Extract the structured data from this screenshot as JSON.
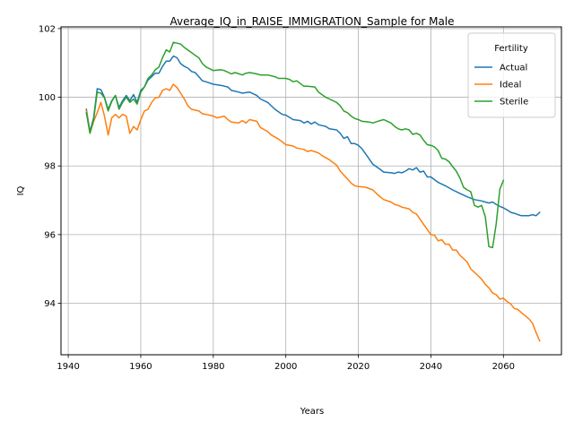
{
  "chart_data": {
    "type": "line",
    "title": "Average_IQ_in_RAISE_IMMIGRATION_Sample for Male",
    "xlabel": "Years",
    "ylabel": "IQ",
    "xlim": [
      1938,
      2076
    ],
    "ylim": [
      92.5,
      102.05
    ],
    "xticks": [
      1940,
      1960,
      1980,
      2000,
      2020,
      2040,
      2060
    ],
    "yticks": [
      94,
      96,
      98,
      100,
      102
    ],
    "grid": true,
    "legend": {
      "title": "Fertility",
      "placement": "top-right"
    },
    "series": [
      {
        "name": "Actual",
        "color": "#1f77b4",
        "points": [
          [
            1945,
            99.65
          ],
          [
            1946,
            99.0
          ],
          [
            1947,
            99.4
          ],
          [
            1948,
            100.25
          ],
          [
            1949,
            100.22
          ],
          [
            1950,
            100.0
          ],
          [
            1951,
            99.65
          ],
          [
            1952,
            99.9
          ],
          [
            1953,
            100.05
          ],
          [
            1954,
            99.7
          ],
          [
            1955,
            99.9
          ],
          [
            1956,
            100.05
          ],
          [
            1957,
            99.9
          ],
          [
            1958,
            100.08
          ],
          [
            1959,
            99.85
          ],
          [
            1960,
            100.2
          ],
          [
            1961,
            100.3
          ],
          [
            1962,
            100.5
          ],
          [
            1963,
            100.6
          ],
          [
            1964,
            100.7
          ],
          [
            1965,
            100.7
          ],
          [
            1966,
            100.9
          ],
          [
            1967,
            101.05
          ],
          [
            1968,
            101.05
          ],
          [
            1969,
            101.2
          ],
          [
            1970,
            101.15
          ],
          [
            1971,
            100.98
          ],
          [
            1972,
            100.9
          ],
          [
            1973,
            100.85
          ],
          [
            1974,
            100.75
          ],
          [
            1975,
            100.72
          ],
          [
            1976,
            100.6
          ],
          [
            1977,
            100.48
          ],
          [
            1978,
            100.45
          ],
          [
            1980,
            100.38
          ],
          [
            1982,
            100.35
          ],
          [
            1984,
            100.3
          ],
          [
            1985,
            100.2
          ],
          [
            1987,
            100.15
          ],
          [
            1988,
            100.12
          ],
          [
            1990,
            100.15
          ],
          [
            1992,
            100.05
          ],
          [
            1993,
            99.95
          ],
          [
            1995,
            99.85
          ],
          [
            1997,
            99.65
          ],
          [
            1999,
            99.5
          ],
          [
            2000,
            99.48
          ],
          [
            2002,
            99.35
          ],
          [
            2004,
            99.32
          ],
          [
            2005,
            99.25
          ],
          [
            2006,
            99.3
          ],
          [
            2007,
            99.22
          ],
          [
            2008,
            99.28
          ],
          [
            2009,
            99.2
          ],
          [
            2011,
            99.15
          ],
          [
            2012,
            99.08
          ],
          [
            2014,
            99.05
          ],
          [
            2015,
            98.95
          ],
          [
            2016,
            98.8
          ],
          [
            2017,
            98.85
          ],
          [
            2018,
            98.65
          ],
          [
            2019,
            98.65
          ],
          [
            2020,
            98.6
          ],
          [
            2021,
            98.5
          ],
          [
            2022,
            98.35
          ],
          [
            2024,
            98.05
          ],
          [
            2026,
            97.9
          ],
          [
            2027,
            97.82
          ],
          [
            2029,
            97.8
          ],
          [
            2030,
            97.78
          ],
          [
            2031,
            97.82
          ],
          [
            2032,
            97.8
          ],
          [
            2033,
            97.85
          ],
          [
            2034,
            97.92
          ],
          [
            2035,
            97.88
          ],
          [
            2036,
            97.95
          ],
          [
            2037,
            97.82
          ],
          [
            2038,
            97.85
          ],
          [
            2039,
            97.68
          ],
          [
            2040,
            97.68
          ],
          [
            2042,
            97.52
          ],
          [
            2044,
            97.42
          ],
          [
            2046,
            97.3
          ],
          [
            2048,
            97.2
          ],
          [
            2050,
            97.1
          ],
          [
            2052,
            97.02
          ],
          [
            2054,
            96.98
          ],
          [
            2055,
            96.95
          ],
          [
            2056,
            96.92
          ],
          [
            2057,
            96.95
          ],
          [
            2058,
            96.88
          ],
          [
            2059,
            96.82
          ],
          [
            2060,
            96.78
          ],
          [
            2061,
            96.72
          ],
          [
            2062,
            96.65
          ],
          [
            2063,
            96.62
          ],
          [
            2064,
            96.58
          ],
          [
            2065,
            96.55
          ],
          [
            2067,
            96.55
          ],
          [
            2068,
            96.58
          ],
          [
            2069,
            96.55
          ],
          [
            2070,
            96.65
          ]
        ]
      },
      {
        "name": "Ideal",
        "color": "#ff7f0e",
        "points": [
          [
            1945,
            99.6
          ],
          [
            1946,
            98.95
          ],
          [
            1947,
            99.3
          ],
          [
            1948,
            99.55
          ],
          [
            1949,
            99.85
          ],
          [
            1950,
            99.45
          ],
          [
            1951,
            98.9
          ],
          [
            1952,
            99.4
          ],
          [
            1953,
            99.5
          ],
          [
            1954,
            99.4
          ],
          [
            1955,
            99.5
          ],
          [
            1956,
            99.45
          ],
          [
            1957,
            98.95
          ],
          [
            1958,
            99.15
          ],
          [
            1959,
            99.05
          ],
          [
            1960,
            99.35
          ],
          [
            1961,
            99.6
          ],
          [
            1962,
            99.65
          ],
          [
            1963,
            99.85
          ],
          [
            1964,
            99.98
          ],
          [
            1965,
            100.0
          ],
          [
            1966,
            100.2
          ],
          [
            1967,
            100.25
          ],
          [
            1968,
            100.2
          ],
          [
            1969,
            100.38
          ],
          [
            1970,
            100.28
          ],
          [
            1971,
            100.12
          ],
          [
            1972,
            99.95
          ],
          [
            1973,
            99.75
          ],
          [
            1974,
            99.65
          ],
          [
            1976,
            99.6
          ],
          [
            1977,
            99.52
          ],
          [
            1978,
            99.5
          ],
          [
            1980,
            99.45
          ],
          [
            1981,
            99.4
          ],
          [
            1983,
            99.45
          ],
          [
            1984,
            99.35
          ],
          [
            1985,
            99.28
          ],
          [
            1987,
            99.25
          ],
          [
            1988,
            99.32
          ],
          [
            1989,
            99.25
          ],
          [
            1990,
            99.35
          ],
          [
            1992,
            99.3
          ],
          [
            1993,
            99.12
          ],
          [
            1995,
            99.0
          ],
          [
            1996,
            98.9
          ],
          [
            1998,
            98.78
          ],
          [
            1999,
            98.7
          ],
          [
            2000,
            98.62
          ],
          [
            2002,
            98.58
          ],
          [
            2003,
            98.52
          ],
          [
            2005,
            98.48
          ],
          [
            2006,
            98.42
          ],
          [
            2007,
            98.45
          ],
          [
            2009,
            98.38
          ],
          [
            2010,
            98.3
          ],
          [
            2012,
            98.18
          ],
          [
            2014,
            98.02
          ],
          [
            2015,
            97.85
          ],
          [
            2017,
            97.62
          ],
          [
            2018,
            97.5
          ],
          [
            2019,
            97.42
          ],
          [
            2020,
            97.4
          ],
          [
            2022,
            97.38
          ],
          [
            2024,
            97.3
          ],
          [
            2025,
            97.2
          ],
          [
            2026,
            97.1
          ],
          [
            2027,
            97.02
          ],
          [
            2029,
            96.95
          ],
          [
            2030,
            96.88
          ],
          [
            2031,
            96.85
          ],
          [
            2032,
            96.8
          ],
          [
            2034,
            96.75
          ],
          [
            2035,
            96.65
          ],
          [
            2036,
            96.6
          ],
          [
            2037,
            96.45
          ],
          [
            2038,
            96.3
          ],
          [
            2039,
            96.15
          ],
          [
            2040,
            96.0
          ],
          [
            2041,
            95.98
          ],
          [
            2042,
            95.82
          ],
          [
            2043,
            95.85
          ],
          [
            2044,
            95.72
          ],
          [
            2045,
            95.72
          ],
          [
            2046,
            95.55
          ],
          [
            2047,
            95.55
          ],
          [
            2048,
            95.4
          ],
          [
            2050,
            95.2
          ],
          [
            2051,
            95.0
          ],
          [
            2052,
            94.9
          ],
          [
            2054,
            94.7
          ],
          [
            2055,
            94.55
          ],
          [
            2056,
            94.45
          ],
          [
            2057,
            94.3
          ],
          [
            2058,
            94.25
          ],
          [
            2059,
            94.12
          ],
          [
            2060,
            94.15
          ],
          [
            2061,
            94.05
          ],
          [
            2062,
            93.98
          ],
          [
            2063,
            93.85
          ],
          [
            2064,
            93.82
          ],
          [
            2065,
            93.72
          ],
          [
            2067,
            93.55
          ],
          [
            2068,
            93.42
          ],
          [
            2069,
            93.15
          ],
          [
            2070,
            92.9
          ]
        ]
      },
      {
        "name": "Sterile",
        "color": "#2ca02c",
        "points": [
          [
            1945,
            99.55
          ],
          [
            1946,
            98.95
          ],
          [
            1947,
            99.35
          ],
          [
            1948,
            100.15
          ],
          [
            1949,
            100.12
          ],
          [
            1950,
            99.98
          ],
          [
            1951,
            99.6
          ],
          [
            1952,
            99.88
          ],
          [
            1953,
            100.05
          ],
          [
            1954,
            99.65
          ],
          [
            1955,
            99.85
          ],
          [
            1956,
            100.0
          ],
          [
            1957,
            99.85
          ],
          [
            1958,
            99.95
          ],
          [
            1959,
            99.8
          ],
          [
            1960,
            100.15
          ],
          [
            1961,
            100.3
          ],
          [
            1962,
            100.55
          ],
          [
            1963,
            100.65
          ],
          [
            1964,
            100.8
          ],
          [
            1965,
            100.88
          ],
          [
            1966,
            101.15
          ],
          [
            1967,
            101.38
          ],
          [
            1968,
            101.32
          ],
          [
            1969,
            101.6
          ],
          [
            1971,
            101.55
          ],
          [
            1972,
            101.45
          ],
          [
            1974,
            101.3
          ],
          [
            1975,
            101.22
          ],
          [
            1976,
            101.15
          ],
          [
            1977,
            100.98
          ],
          [
            1978,
            100.88
          ],
          [
            1980,
            100.78
          ],
          [
            1982,
            100.8
          ],
          [
            1983,
            100.78
          ],
          [
            1985,
            100.68
          ],
          [
            1986,
            100.72
          ],
          [
            1988,
            100.65
          ],
          [
            1989,
            100.7
          ],
          [
            1990,
            100.72
          ],
          [
            1992,
            100.68
          ],
          [
            1993,
            100.65
          ],
          [
            1995,
            100.65
          ],
          [
            1997,
            100.6
          ],
          [
            1998,
            100.55
          ],
          [
            2000,
            100.55
          ],
          [
            2001,
            100.52
          ],
          [
            2002,
            100.45
          ],
          [
            2003,
            100.48
          ],
          [
            2005,
            100.32
          ],
          [
            2006,
            100.32
          ],
          [
            2008,
            100.3
          ],
          [
            2009,
            100.15
          ],
          [
            2011,
            100.0
          ],
          [
            2012,
            99.95
          ],
          [
            2014,
            99.85
          ],
          [
            2015,
            99.75
          ],
          [
            2016,
            99.6
          ],
          [
            2017,
            99.55
          ],
          [
            2018,
            99.45
          ],
          [
            2019,
            99.38
          ],
          [
            2020,
            99.35
          ],
          [
            2021,
            99.3
          ],
          [
            2023,
            99.28
          ],
          [
            2024,
            99.25
          ],
          [
            2026,
            99.32
          ],
          [
            2027,
            99.35
          ],
          [
            2028,
            99.3
          ],
          [
            2029,
            99.25
          ],
          [
            2030,
            99.15
          ],
          [
            2031,
            99.08
          ],
          [
            2032,
            99.05
          ],
          [
            2033,
            99.08
          ],
          [
            2034,
            99.05
          ],
          [
            2035,
            98.92
          ],
          [
            2036,
            98.95
          ],
          [
            2037,
            98.9
          ],
          [
            2038,
            98.75
          ],
          [
            2039,
            98.62
          ],
          [
            2040,
            98.6
          ],
          [
            2041,
            98.55
          ],
          [
            2042,
            98.45
          ],
          [
            2043,
            98.22
          ],
          [
            2044,
            98.2
          ],
          [
            2045,
            98.12
          ],
          [
            2046,
            97.98
          ],
          [
            2047,
            97.85
          ],
          [
            2048,
            97.65
          ],
          [
            2049,
            97.38
          ],
          [
            2050,
            97.3
          ],
          [
            2051,
            97.25
          ],
          [
            2052,
            96.85
          ],
          [
            2053,
            96.8
          ],
          [
            2054,
            96.85
          ],
          [
            2055,
            96.52
          ],
          [
            2056,
            95.65
          ],
          [
            2057,
            95.62
          ],
          [
            2058,
            96.3
          ],
          [
            2059,
            97.32
          ],
          [
            2060,
            97.58
          ]
        ]
      }
    ]
  }
}
